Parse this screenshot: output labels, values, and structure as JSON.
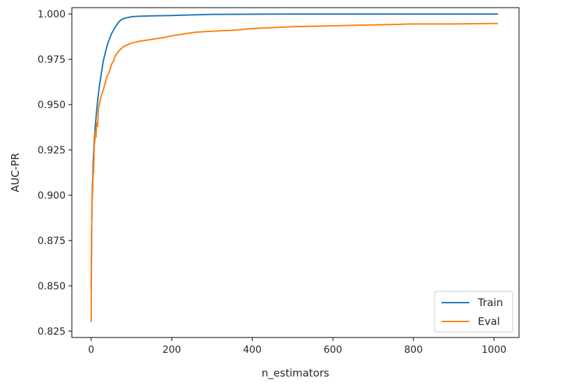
{
  "chart_data": {
    "type": "line",
    "title": "",
    "xlabel": "n_estimators",
    "ylabel": "AUC-PR",
    "xlim": [
      -48,
      1062
    ],
    "ylim": [
      0.8215,
      1.0035
    ],
    "xticks": [
      0,
      200,
      400,
      600,
      800,
      1000
    ],
    "xtick_labels": [
      "0",
      "200",
      "400",
      "600",
      "800",
      "1000"
    ],
    "yticks": [
      0.825,
      0.85,
      0.875,
      0.9,
      0.925,
      0.95,
      0.975,
      1.0
    ],
    "ytick_labels": [
      "0.825",
      "0.850",
      "0.875",
      "0.900",
      "0.925",
      "0.950",
      "0.975",
      "1.000"
    ],
    "grid": false,
    "legend": {
      "position": "lower-right"
    },
    "series": [
      {
        "name": "Train",
        "color": "#1f77b4",
        "x": [
          0,
          1,
          2,
          3,
          5,
          7,
          10,
          15,
          20,
          25,
          30,
          40,
          50,
          60,
          70,
          80,
          90,
          100,
          120,
          150,
          200,
          250,
          300,
          400,
          500,
          600,
          700,
          800,
          900,
          1010
        ],
        "y": [
          0.848,
          0.878,
          0.895,
          0.905,
          0.918,
          0.928,
          0.938,
          0.95,
          0.96,
          0.967,
          0.974,
          0.983,
          0.989,
          0.993,
          0.996,
          0.9975,
          0.998,
          0.9985,
          0.9988,
          0.999,
          0.9992,
          0.9995,
          0.9998,
          0.9999,
          1.0,
          1.0,
          1.0,
          1.0,
          1.0,
          1.0
        ]
      },
      {
        "name": "Eval",
        "color": "#ff7f0e",
        "x": [
          0,
          1,
          2,
          3,
          4,
          5,
          6,
          7,
          8,
          9,
          10,
          12,
          14,
          16,
          18,
          20,
          25,
          30,
          35,
          40,
          45,
          50,
          55,
          60,
          70,
          80,
          90,
          100,
          120,
          150,
          180,
          200,
          230,
          260,
          300,
          350,
          400,
          450,
          500,
          600,
          700,
          800,
          900,
          1010
        ],
        "y": [
          0.83,
          0.88,
          0.895,
          0.9,
          0.905,
          0.915,
          0.912,
          0.925,
          0.928,
          0.93,
          0.935,
          0.932,
          0.94,
          0.938,
          0.948,
          0.95,
          0.955,
          0.958,
          0.962,
          0.966,
          0.968,
          0.972,
          0.974,
          0.977,
          0.98,
          0.982,
          0.983,
          0.984,
          0.985,
          0.986,
          0.987,
          0.988,
          0.989,
          0.99,
          0.9905,
          0.991,
          0.992,
          0.9925,
          0.993,
          0.9935,
          0.994,
          0.9945,
          0.9945,
          0.9948
        ]
      }
    ]
  }
}
